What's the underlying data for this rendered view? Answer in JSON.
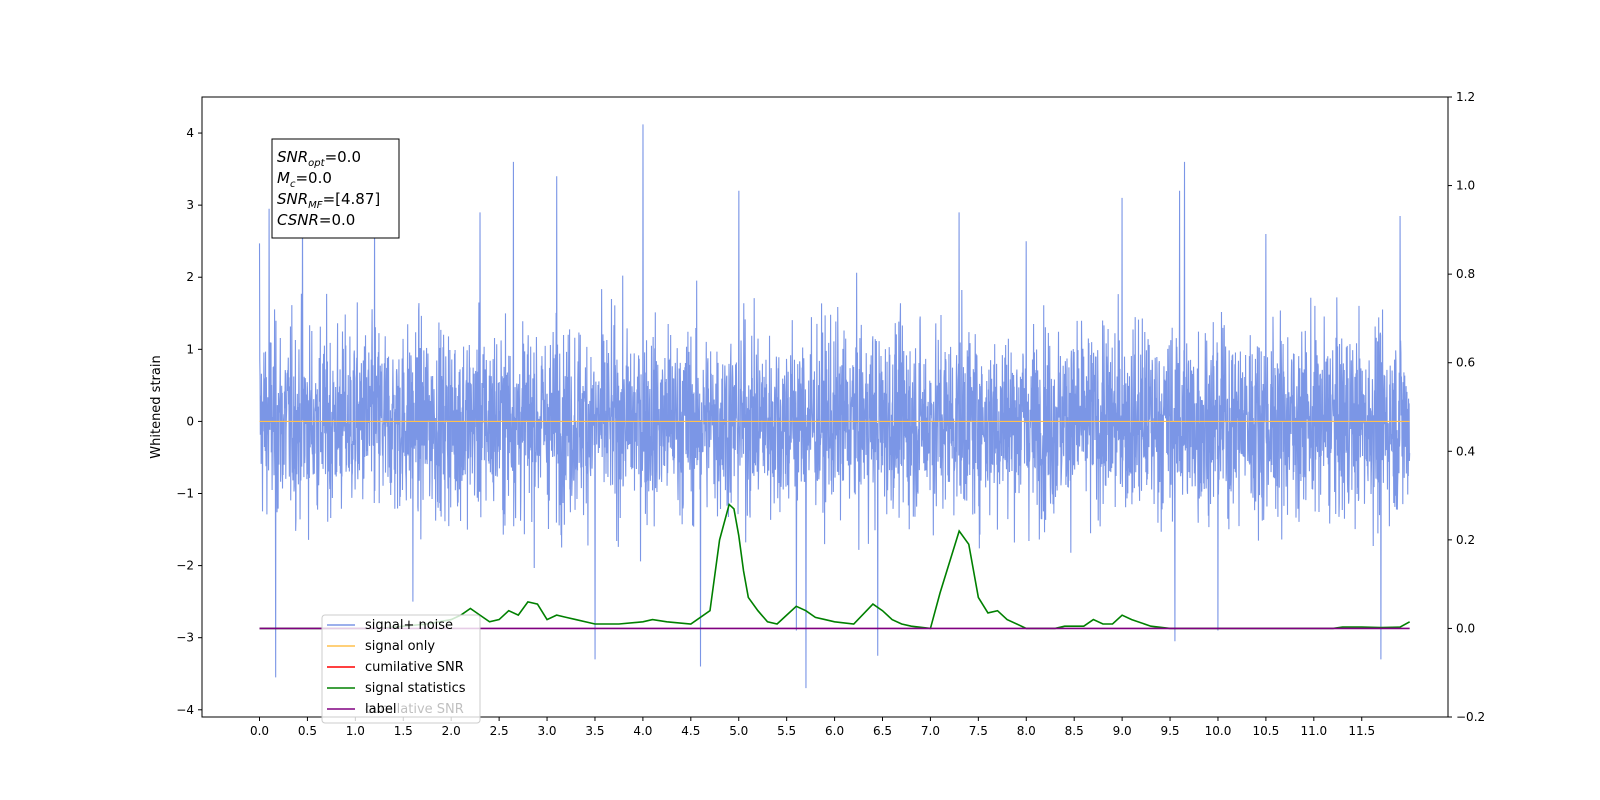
{
  "chart_data": {
    "type": "line",
    "title": "",
    "xlabel": "",
    "ylabel": "Whitened strain",
    "xlim": [
      -0.6,
      12.4
    ],
    "ylim": [
      -4.1,
      4.5
    ],
    "y2lim": [
      -0.2,
      1.2
    ],
    "x_ticks": [
      "0.0",
      "0.5",
      "1.0",
      "1.5",
      "2.0",
      "2.5",
      "3.0",
      "3.5",
      "4.0",
      "4.5",
      "5.0",
      "5.5",
      "6.0",
      "6.5",
      "7.0",
      "7.5",
      "8.0",
      "8.5",
      "9.0",
      "9.5",
      "10.0",
      "10.5",
      "11.0",
      "11.5"
    ],
    "y_ticks": [
      "4",
      "3",
      "2",
      "1",
      "0",
      "−1",
      "−2",
      "−3",
      "−4"
    ],
    "y2_ticks": [
      "1.2",
      "1.0",
      "0.8",
      "0.6",
      "0.4",
      "0.2",
      "0.0",
      "−0.2"
    ],
    "grid": false,
    "legend_position": "lower-left",
    "annotation": {
      "lines": [
        {
          "sym": "SNR",
          "sub": "opt",
          "val": "=0.0"
        },
        {
          "sym": "M",
          "sub": "c",
          "val": "=0.0"
        },
        {
          "sym": "SNR",
          "sub": "MF",
          "val": "=[4.87]"
        },
        {
          "sym": "CSNR",
          "sub": "",
          "val": "=0.0"
        }
      ]
    },
    "series": [
      {
        "name": "signal+ noise",
        "color": "#7b96e6",
        "axis": "left",
        "x_range": [
          0.0,
          12.0
        ],
        "amplitude_typical": 1.4,
        "spikes": [
          [
            0.0,
            2.47
          ],
          [
            0.1,
            2.95
          ],
          [
            0.17,
            -3.55
          ],
          [
            0.45,
            3.0
          ],
          [
            1.2,
            3.15
          ],
          [
            1.6,
            -2.5
          ],
          [
            2.3,
            2.9
          ],
          [
            2.65,
            3.6
          ],
          [
            3.1,
            3.4
          ],
          [
            3.5,
            -3.3
          ],
          [
            4.0,
            4.12
          ],
          [
            4.6,
            -3.4
          ],
          [
            5.0,
            3.2
          ],
          [
            5.6,
            -2.9
          ],
          [
            5.7,
            -3.7
          ],
          [
            6.45,
            -3.25
          ],
          [
            7.3,
            2.9
          ],
          [
            8.0,
            2.5
          ],
          [
            9.0,
            3.1
          ],
          [
            9.55,
            -3.05
          ],
          [
            9.6,
            3.2
          ],
          [
            9.65,
            3.6
          ],
          [
            10.0,
            -2.9
          ],
          [
            10.5,
            2.6
          ],
          [
            11.7,
            -3.3
          ],
          [
            11.9,
            2.85
          ]
        ]
      },
      {
        "name": "signal only",
        "color": "#ffc04d",
        "axis": "left",
        "x": [
          0.0,
          12.0
        ],
        "values": [
          0.0,
          0.0
        ]
      },
      {
        "name": "cumilative SNR",
        "color": "#ff0000",
        "axis": "right",
        "x": [],
        "values": []
      },
      {
        "name": "signal statistics",
        "color": "#008000",
        "axis": "right",
        "x": [
          0.0,
          0.25,
          0.5,
          0.75,
          1.0,
          1.25,
          1.5,
          1.75,
          2.0,
          2.1,
          2.2,
          2.3,
          2.4,
          2.5,
          2.6,
          2.7,
          2.8,
          2.9,
          3.0,
          3.1,
          3.2,
          3.3,
          3.5,
          3.75,
          4.0,
          4.1,
          4.25,
          4.5,
          4.7,
          4.8,
          4.9,
          4.95,
          5.0,
          5.05,
          5.1,
          5.2,
          5.3,
          5.4,
          5.5,
          5.6,
          5.7,
          5.8,
          5.9,
          6.0,
          6.2,
          6.4,
          6.5,
          6.6,
          6.7,
          6.8,
          7.0,
          7.1,
          7.2,
          7.3,
          7.4,
          7.5,
          7.6,
          7.7,
          7.8,
          8.0,
          8.3,
          8.4,
          8.6,
          8.7,
          8.8,
          8.9,
          9.0,
          9.1,
          9.3,
          9.5,
          10.0,
          10.5,
          11.0,
          11.2,
          11.3,
          11.5,
          11.7,
          11.9,
          12.0
        ],
        "values": [
          0.0,
          0.0,
          0.0,
          0.0,
          0.0,
          0.0,
          0.005,
          0.01,
          0.02,
          0.03,
          0.045,
          0.03,
          0.015,
          0.02,
          0.04,
          0.03,
          0.06,
          0.055,
          0.02,
          0.03,
          0.025,
          0.02,
          0.01,
          0.01,
          0.015,
          0.02,
          0.015,
          0.01,
          0.04,
          0.2,
          0.28,
          0.27,
          0.21,
          0.13,
          0.07,
          0.04,
          0.015,
          0.01,
          0.03,
          0.05,
          0.04,
          0.025,
          0.02,
          0.015,
          0.01,
          0.055,
          0.04,
          0.02,
          0.01,
          0.005,
          0.0,
          0.08,
          0.15,
          0.22,
          0.19,
          0.07,
          0.035,
          0.04,
          0.02,
          0.0,
          0.0,
          0.005,
          0.005,
          0.02,
          0.01,
          0.01,
          0.03,
          0.02,
          0.005,
          0.0,
          0.0,
          0.0,
          0.0,
          0.0,
          0.003,
          0.003,
          0.002,
          0.003,
          0.015
        ]
      },
      {
        "name": "label",
        "color": "#800080",
        "axis": "right",
        "x": [
          0.0,
          12.0
        ],
        "values": [
          0.0,
          0.0
        ]
      }
    ],
    "hidden_legend_text": "cumilative SNR"
  }
}
